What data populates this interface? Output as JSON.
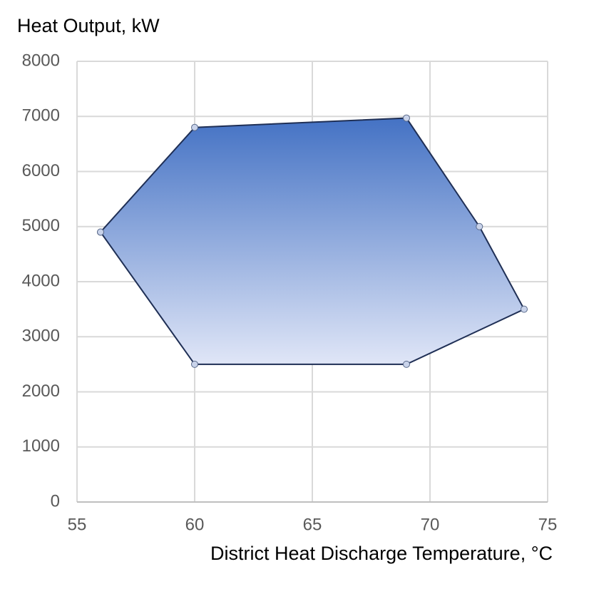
{
  "chart_data": {
    "type": "area",
    "title": "Heat Output, kW",
    "x_label": "District Heat Discharge Temperature, °C",
    "x": [
      56,
      60,
      69,
      72.1,
      74,
      69,
      60,
      56
    ],
    "series": [
      {
        "values": [
          4900,
          6800,
          6970,
          5000,
          3500,
          2500,
          2500,
          4900
        ]
      }
    ],
    "gradient": [
      "#4472c4",
      "#e0e6f7"
    ],
    "line_color": "#1f2f55",
    "xlim": [
      55,
      75
    ],
    "xticks": [
      55,
      60,
      65,
      70,
      75
    ],
    "ylim": [
      0,
      8000
    ],
    "yticks": [
      0,
      1000,
      2000,
      3000,
      4000,
      5000,
      6000,
      7000,
      8000
    ],
    "grid": true
  }
}
